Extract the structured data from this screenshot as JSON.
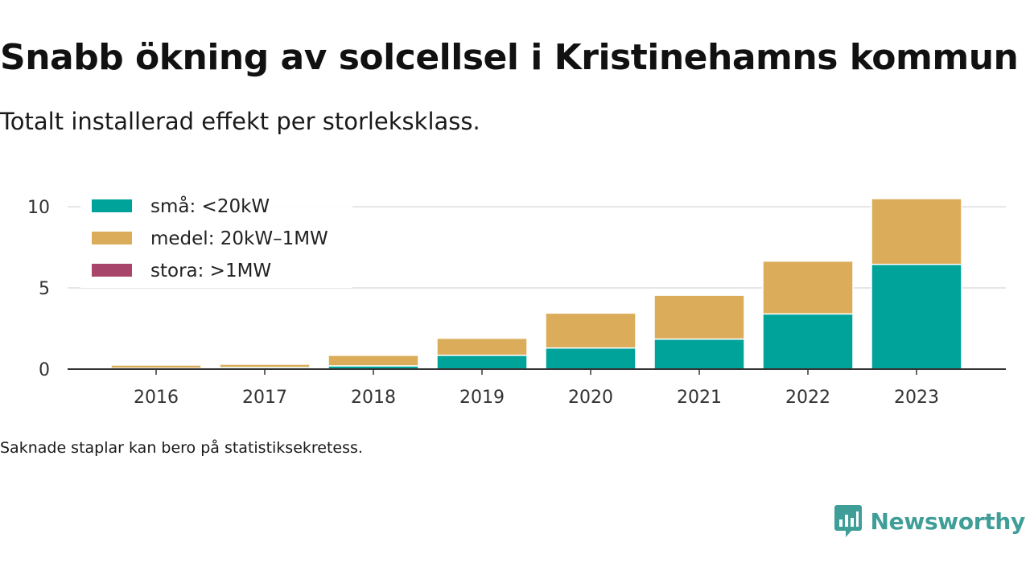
{
  "title": "Snabb ökning av solcellsel i Kristinehamns kommun",
  "subtitle": "Totalt installerad effekt per storleksklass.",
  "note": "Saknade staplar kan bero på statistiksekretess.",
  "brand": {
    "name": "Newsworthy",
    "icon": "newsworthy-logo-icon",
    "color": "#3f9e98"
  },
  "chart_data": {
    "type": "bar",
    "stacked": true,
    "categories": [
      "2016",
      "2017",
      "2018",
      "2019",
      "2020",
      "2021",
      "2022",
      "2023"
    ],
    "series": [
      {
        "name": "små: <20kW",
        "color": "#00a39a",
        "values": [
          0.05,
          0.1,
          0.2,
          0.85,
          1.3,
          1.85,
          3.4,
          6.45
        ]
      },
      {
        "name": "medel: 20kW–1MW",
        "color": "#dbad5a",
        "values": [
          0.2,
          0.2,
          0.65,
          1.05,
          2.15,
          2.7,
          3.25,
          4.05
        ]
      },
      {
        "name": "stora: >1MW",
        "color": "#a8456b",
        "values": [
          0,
          0,
          0,
          0,
          0,
          0,
          0,
          0
        ]
      }
    ],
    "ylim": [
      0,
      10.5
    ],
    "yticks": [
      0,
      5,
      10
    ],
    "grid": true,
    "legend_position": "top-left",
    "xlabel": "",
    "ylabel": ""
  }
}
